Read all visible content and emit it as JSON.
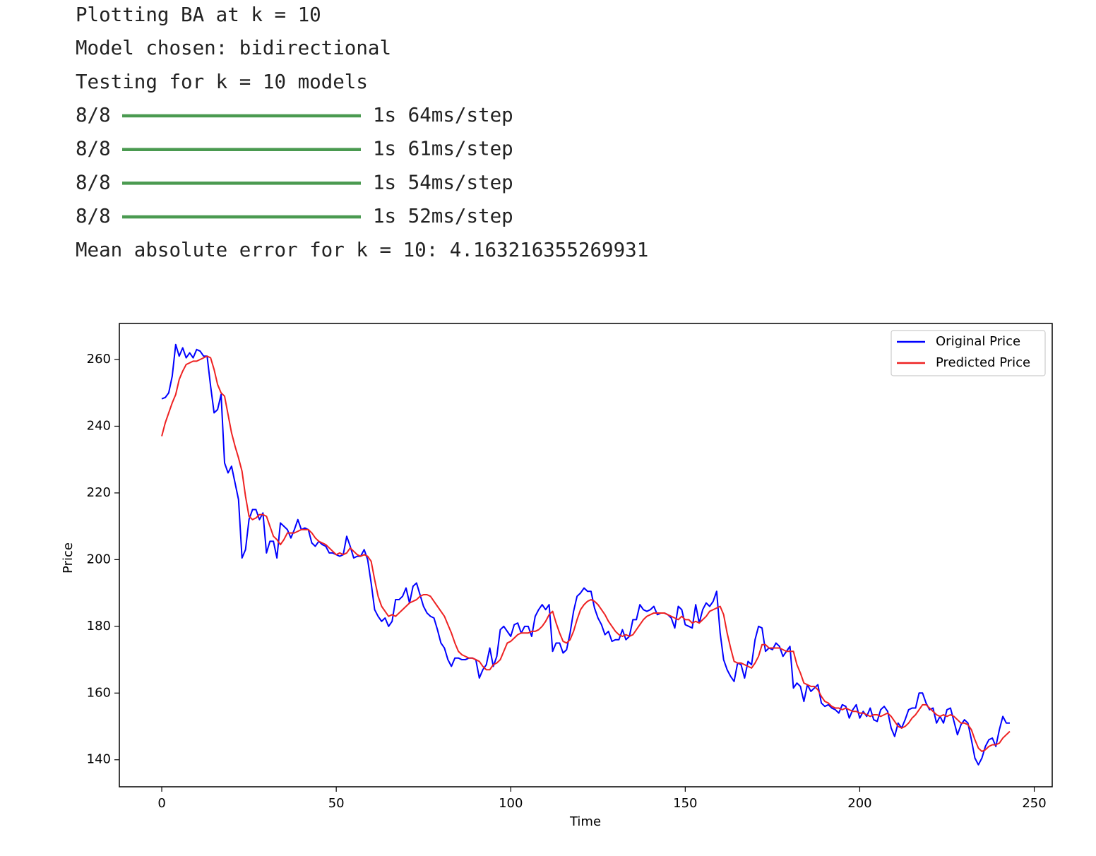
{
  "console": {
    "lines": [
      "Plotting BA at k = 10",
      "Model chosen: bidirectional",
      "Testing for k = 10 models"
    ],
    "progress": [
      {
        "step": "8/8",
        "time": "1s 64ms/step"
      },
      {
        "step": "8/8",
        "time": "1s 61ms/step"
      },
      {
        "step": "8/8",
        "time": "1s 54ms/step"
      },
      {
        "step": "8/8",
        "time": "1s 52ms/step"
      }
    ],
    "result": "Mean absolute error for k = 10: 4.163216355269931"
  },
  "chart_data": {
    "type": "line",
    "xlabel": "Time",
    "ylabel": "Price",
    "xlim": [
      -12.15,
      255.15
    ],
    "ylim": [
      131.9,
      270.8
    ],
    "xticks": [
      0,
      50,
      100,
      150,
      200,
      250
    ],
    "yticks": [
      140,
      160,
      180,
      200,
      220,
      240,
      260
    ],
    "legend": "upper right",
    "x": [
      0,
      1,
      2,
      3,
      4,
      5,
      6,
      7,
      8,
      9,
      10,
      11,
      12,
      13,
      14,
      15,
      16,
      17,
      18,
      19,
      20,
      21,
      22,
      23,
      24,
      25,
      26,
      27,
      28,
      29,
      30,
      31,
      32,
      33,
      34,
      35,
      36,
      37,
      38,
      39,
      40,
      41,
      42,
      43,
      44,
      45,
      46,
      47,
      48,
      49,
      50,
      51,
      52,
      53,
      54,
      55,
      56,
      57,
      58,
      59,
      60,
      61,
      62,
      63,
      64,
      65,
      66,
      67,
      68,
      69,
      70,
      71,
      72,
      73,
      74,
      75,
      76,
      77,
      78,
      79,
      80,
      81,
      82,
      83,
      84,
      85,
      86,
      87,
      88,
      89,
      90,
      91,
      92,
      93,
      94,
      95,
      96,
      97,
      98,
      99,
      100,
      101,
      102,
      103,
      104,
      105,
      106,
      107,
      108,
      109,
      110,
      111,
      112,
      113,
      114,
      115,
      116,
      117,
      118,
      119,
      120,
      121,
      122,
      123,
      124,
      125,
      126,
      127,
      128,
      129,
      130,
      131,
      132,
      133,
      134,
      135,
      136,
      137,
      138,
      139,
      140,
      141,
      142,
      143,
      144,
      145,
      146,
      147,
      148,
      149,
      150,
      151,
      152,
      153,
      154,
      155,
      156,
      157,
      158,
      159,
      160,
      161,
      162,
      163,
      164,
      165,
      166,
      167,
      168,
      169,
      170,
      171,
      172,
      173,
      174,
      175,
      176,
      177,
      178,
      179,
      180,
      181,
      182,
      183,
      184,
      185,
      186,
      187,
      188,
      189,
      190,
      191,
      192,
      193,
      194,
      195,
      196,
      197,
      198,
      199,
      200,
      201,
      202,
      203,
      204,
      205,
      206,
      207,
      208,
      209,
      210,
      211,
      212,
      213,
      214,
      215,
      216,
      217,
      218,
      219,
      220,
      221,
      222,
      223,
      224,
      225,
      226,
      227,
      228,
      229,
      230,
      231,
      232,
      233,
      234,
      235,
      236,
      237,
      238,
      239,
      240,
      241,
      242,
      243
    ],
    "series": [
      {
        "name": "Original Price",
        "color": "#0000ff",
        "values": [
          248.2,
          248.6,
          250,
          255,
          264.5,
          261,
          263.5,
          260.5,
          262,
          260.5,
          263,
          262.5,
          261,
          261,
          252,
          244,
          245,
          249.5,
          229,
          226,
          228,
          223,
          218,
          200.5,
          203,
          212,
          215,
          215,
          212,
          214,
          202,
          205.5,
          205.5,
          200.5,
          211,
          210,
          209,
          206.5,
          209,
          212,
          209,
          209.5,
          209,
          205,
          204,
          205.5,
          204.5,
          204,
          202,
          202,
          201.5,
          201,
          201.5,
          207,
          204,
          200.5,
          201,
          201,
          203,
          200,
          193,
          185,
          183,
          181.5,
          182.5,
          180,
          181.5,
          188,
          188,
          189,
          191.5,
          187,
          192,
          193,
          189.5,
          186,
          184,
          183,
          182.5,
          179,
          175,
          173.5,
          170,
          168,
          170.5,
          170.5,
          170,
          170,
          170.5,
          170.5,
          170,
          164.5,
          167,
          168.5,
          173.5,
          168,
          171,
          179,
          180,
          178.5,
          177,
          180.5,
          181,
          178,
          180,
          180,
          177,
          183,
          185,
          186.5,
          185,
          186.5,
          172.5,
          175,
          175,
          172,
          173,
          178,
          184.5,
          189,
          190,
          191.5,
          190.5,
          190.5,
          185.5,
          182.5,
          180.5,
          177.5,
          178.5,
          175.5,
          176,
          176,
          179,
          176,
          177,
          182,
          182,
          186.5,
          185,
          184.5,
          185,
          186,
          183.5,
          184,
          184,
          183.5,
          182.5,
          179.5,
          186,
          185,
          180.5,
          180,
          179.5,
          186.5,
          181,
          185,
          187,
          186,
          187.5,
          190.5,
          178,
          170,
          167,
          165,
          163.5,
          169,
          168.5,
          164.5,
          169.5,
          168.5,
          176,
          180,
          179.5,
          172.5,
          173.5,
          173,
          175,
          174,
          171,
          172.5,
          174,
          161.5,
          163,
          162,
          157.5,
          162.5,
          160.5,
          161.5,
          162.5,
          157,
          156,
          156.5,
          155.5,
          155,
          154,
          156.5,
          156,
          152.5,
          155,
          156.5,
          152.5,
          154.5,
          153,
          155.5,
          152,
          151.5,
          155,
          156,
          154.5,
          149.5,
          147,
          151,
          149.5,
          152,
          155,
          155.5,
          155.5,
          160,
          160,
          157,
          155,
          155.5,
          151,
          153,
          151,
          155,
          155.5,
          151.5,
          147.5,
          150.5,
          152,
          151,
          146,
          140.5,
          138.5,
          140.5,
          144,
          146,
          146.5,
          144,
          149,
          153,
          151,
          151
        ]
      },
      {
        "name": "Predicted Price",
        "color": "#ee2222",
        "values": [
          237,
          241,
          244,
          247,
          249.5,
          254,
          256.5,
          258.5,
          259,
          259.5,
          259.5,
          260,
          260.5,
          261,
          260.5,
          257,
          252.5,
          250,
          249,
          243.5,
          238,
          234,
          230.5,
          226.5,
          219,
          213,
          212,
          212.5,
          213.5,
          213.5,
          213,
          210,
          207,
          206,
          204.5,
          206,
          208,
          208,
          208,
          208.5,
          209,
          209,
          209,
          208,
          206.5,
          205.5,
          205,
          204.5,
          203.5,
          202.5,
          201.5,
          202,
          201.5,
          202,
          203.5,
          202.5,
          201.5,
          201,
          201.5,
          201,
          199.5,
          194,
          189,
          186,
          184.5,
          183,
          183.5,
          183,
          184,
          185,
          186,
          187,
          187.5,
          188,
          189,
          189.5,
          189.5,
          189,
          187.5,
          186,
          184.5,
          183,
          180.5,
          178,
          175,
          172.5,
          171.5,
          171,
          170.5,
          170.5,
          170,
          169.5,
          168,
          167,
          167,
          168.5,
          169,
          170,
          172.5,
          175,
          175.5,
          176.5,
          177.5,
          178,
          178,
          178,
          178.5,
          178.5,
          179,
          180,
          181.5,
          183.5,
          184.5,
          181,
          178,
          175.5,
          175,
          176,
          178.5,
          182,
          185,
          186.5,
          187.5,
          188,
          187.5,
          186.5,
          185,
          183.5,
          181.5,
          180,
          178.5,
          177.5,
          177,
          177.5,
          177,
          177.5,
          179,
          180.5,
          182,
          183,
          183.5,
          184,
          184,
          184,
          184,
          183.5,
          183,
          182.5,
          182,
          183,
          182,
          182,
          181,
          181.5,
          181,
          182,
          183,
          184.5,
          185,
          185.5,
          186,
          183.5,
          178,
          173.5,
          169.5,
          169,
          169,
          168.5,
          168,
          167.5,
          169,
          171,
          174.5,
          174.5,
          173.5,
          173.5,
          173.5,
          173.5,
          173,
          172.5,
          172.5,
          172.5,
          168.5,
          166,
          163,
          162.5,
          162,
          162,
          161,
          159,
          157.5,
          157,
          156,
          155.5,
          155.5,
          155,
          155.5,
          155,
          154.5,
          154.5,
          154,
          154,
          153.5,
          153,
          153.5,
          153.5,
          153,
          153.5,
          154,
          153,
          151.5,
          150,
          149.5,
          150,
          151,
          152.5,
          153.5,
          155,
          156.5,
          156.5,
          155.5,
          154.5,
          153.5,
          153,
          153.5,
          153,
          153.5,
          153,
          152,
          151,
          151,
          150.5,
          149,
          146,
          143.5,
          142.5,
          143,
          144,
          144.5,
          144.5,
          145,
          146.5,
          147.5,
          148.5
        ]
      }
    ]
  }
}
